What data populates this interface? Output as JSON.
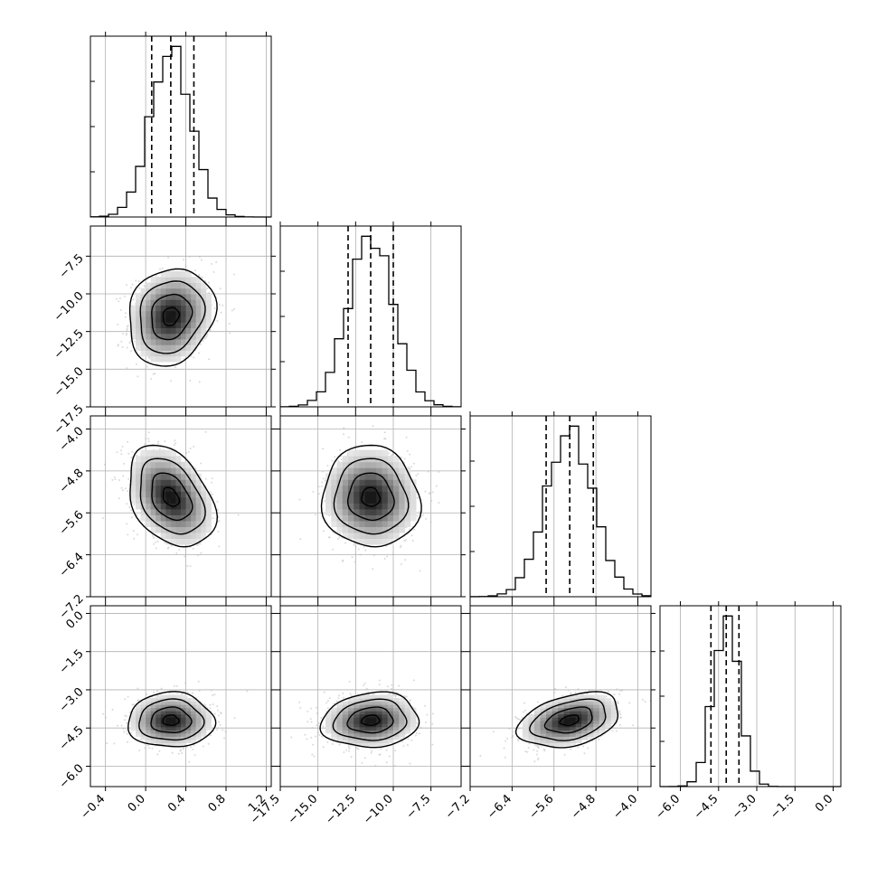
{
  "chart_data": {
    "type": "corner",
    "grid": true,
    "parameters": [
      {
        "median": 0.25,
        "q16": 0.06,
        "q84": 0.48,
        "sd": 0.2,
        "range": [
          -0.55,
          1.25
        ],
        "ticks": [
          -0.4,
          0.0,
          0.4,
          0.8,
          1.2
        ],
        "tick_labels": [
          "−0.4",
          "0.0",
          "0.4",
          "0.8",
          "1.2"
        ]
      },
      {
        "median": -11.5,
        "q16": -13.0,
        "q84": -10.0,
        "sd": 1.5,
        "range": [
          -17.5,
          -5.5
        ],
        "ticks": [
          -17.5,
          -15.0,
          -12.5,
          -10.0,
          -7.5
        ],
        "tick_labels": [
          "−17.5",
          "−15.0",
          "−12.5",
          "−10.0",
          "−7.5"
        ]
      },
      {
        "median": -5.3,
        "q16": -5.75,
        "q84": -4.85,
        "sd": 0.45,
        "range": [
          -7.2,
          -3.75
        ],
        "ticks": [
          -7.2,
          -6.4,
          -5.6,
          -4.8,
          -4.0
        ],
        "tick_labels": [
          "−7.2",
          "−6.4",
          "−5.6",
          "−4.8",
          "−4.0"
        ]
      },
      {
        "median": -4.2,
        "q16": -4.8,
        "q84": -3.7,
        "sd": 0.5,
        "range": [
          -6.8,
          0.3
        ],
        "ticks": [
          -6.0,
          -4.5,
          -3.0,
          -1.5,
          0.0
        ],
        "tick_labels": [
          "−6.0",
          "−4.5",
          "−3.0",
          "−1.5",
          "0.0"
        ]
      }
    ],
    "correlations": {
      "1-0": 0.15,
      "2-0": -0.35,
      "2-1": -0.05,
      "3-0": 0.0,
      "3-1": 0.1,
      "3-2": 0.35
    },
    "histogram_bins": 20,
    "scatter_color": "#bbbbbb",
    "contour_color": "#000000",
    "quantile_line_style": "dashed",
    "grid_color": "#b0b0b0"
  }
}
